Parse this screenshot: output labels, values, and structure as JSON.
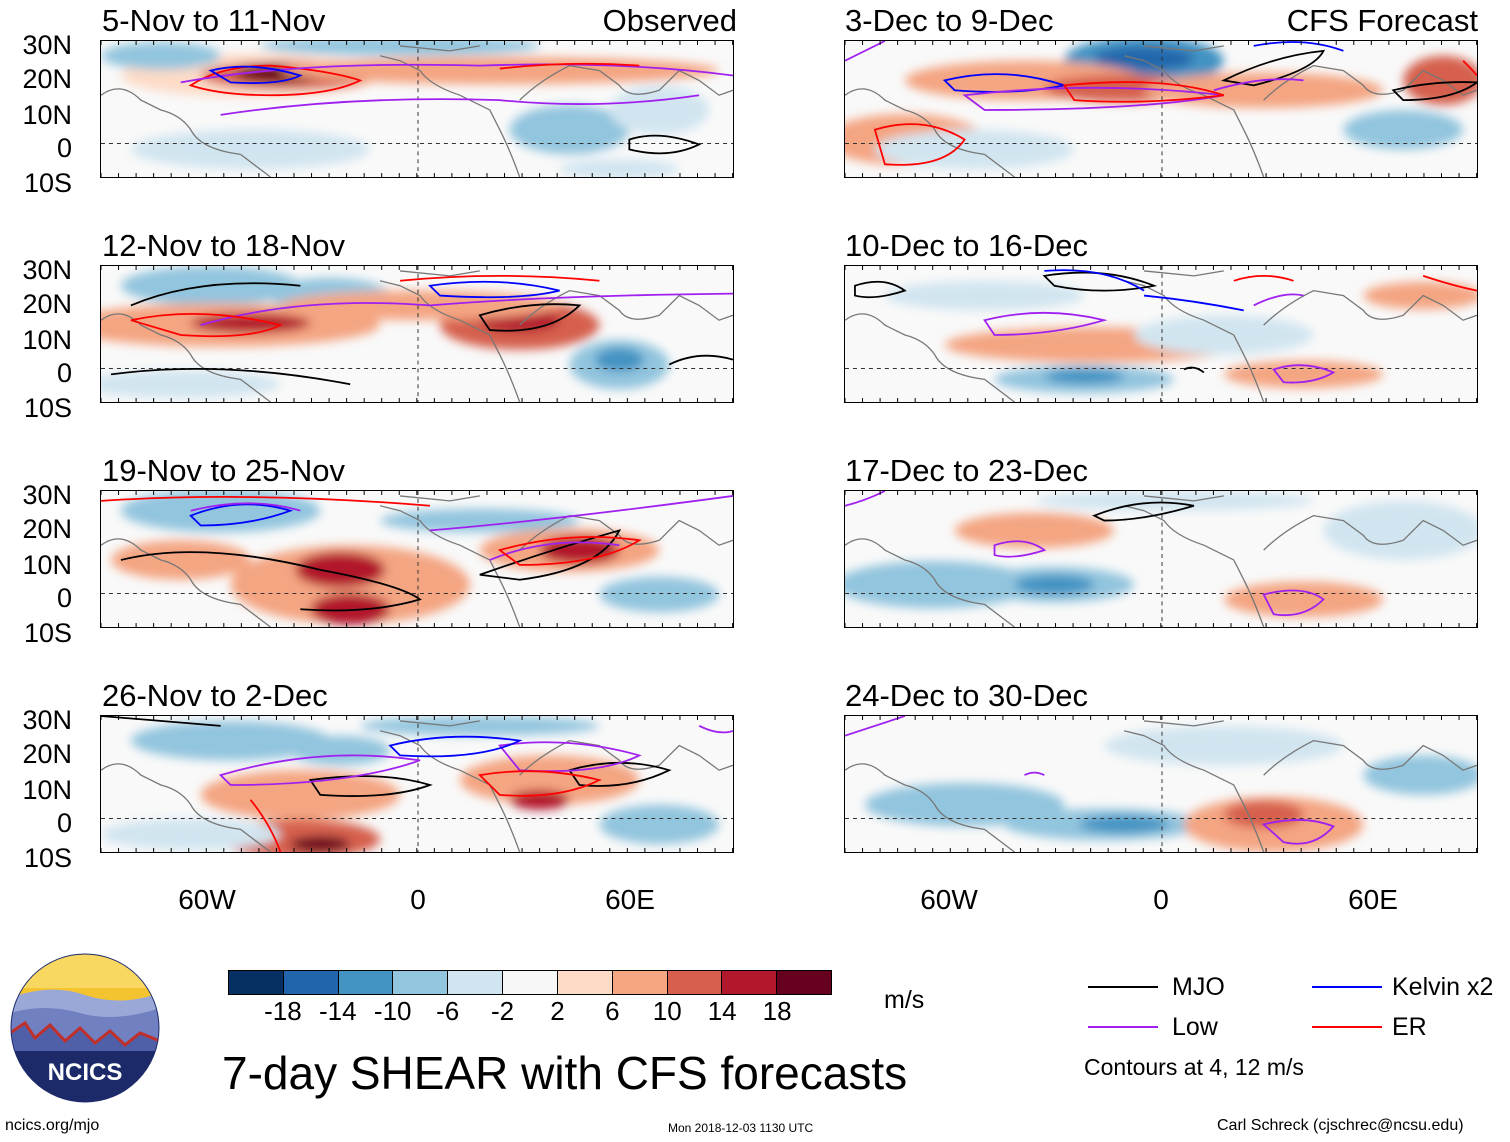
{
  "title": "7-day SHEAR with CFS forecasts",
  "columns": {
    "left": {
      "source_label": "Observed"
    },
    "right": {
      "source_label": "CFS Forecast"
    }
  },
  "panels": [
    {
      "id": "p1",
      "period": "5-Nov to 11-Nov"
    },
    {
      "id": "p2",
      "period": "12-Nov to 18-Nov"
    },
    {
      "id": "p3",
      "period": "19-Nov to 25-Nov"
    },
    {
      "id": "p4",
      "period": "26-Nov to 2-Dec"
    },
    {
      "id": "p5",
      "period": "3-Dec to 9-Dec"
    },
    {
      "id": "p6",
      "period": "10-Dec to 16-Dec"
    },
    {
      "id": "p7",
      "period": "17-Dec to 23-Dec"
    },
    {
      "id": "p8",
      "period": "24-Dec to 30-Dec"
    }
  ],
  "lat_labels": [
    "30N",
    "20N",
    "10N",
    "0",
    "10S"
  ],
  "lon_labels": [
    "60W",
    "0",
    "60E"
  ],
  "colorbar": {
    "units": "m/s",
    "ticks": [
      "-18",
      "-14",
      "-10",
      "-6",
      "-2",
      "2",
      "6",
      "10",
      "14",
      "18"
    ],
    "colors": [
      "#053061",
      "#2166ac",
      "#4393c3",
      "#92c5de",
      "#d1e5f0",
      "#f7f7f7",
      "#fddbc7",
      "#f4a582",
      "#d6604d",
      "#b2182b",
      "#67001f"
    ]
  },
  "legend": {
    "items": [
      {
        "label": "MJO",
        "color": "#000000"
      },
      {
        "label": "Kelvin x2",
        "color": "#0000ff"
      },
      {
        "label": "Low",
        "color": "#a020f0"
      },
      {
        "label": "ER",
        "color": "#ff0000"
      }
    ],
    "note": "Contours at 4, 12 m/s"
  },
  "logo_text": "NCICS",
  "footer": {
    "left": "ncics.org/mjo",
    "center": "Mon 2018-12-03 1130 UTC",
    "right": "Carl Schreck (cjschrec@ncsu.edu)"
  }
}
